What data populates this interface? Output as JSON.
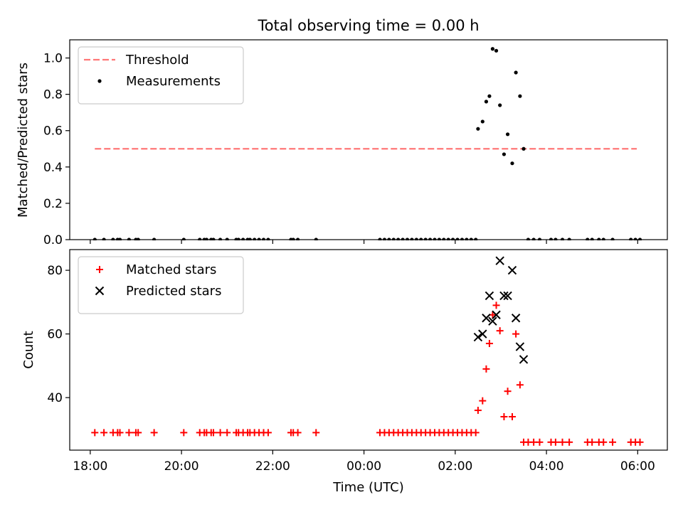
{
  "chart_data": [
    {
      "type": "scatter",
      "title": "Total observing time = 0.00 h",
      "xlabel": "",
      "ylabel": "Matched/Predicted stars",
      "x_unit": "hours since 18:00 UTC",
      "xlim": [
        -0.45,
        12.65
      ],
      "ylim": [
        0,
        1.1
      ],
      "yticks": [
        0.0,
        0.2,
        0.4,
        0.6,
        0.8,
        1.0
      ],
      "ytick_labels": [
        "0.0",
        "0.2",
        "0.4",
        "0.6",
        "0.8",
        "1.0"
      ],
      "grid": false,
      "legend": "upper-left",
      "threshold": {
        "name": "Threshold",
        "value": 0.5,
        "x": [
          0.1,
          11.98
        ],
        "color": "#ff7777",
        "style": "dashed"
      },
      "series": [
        {
          "name": "Measurements",
          "color": "#000000",
          "marker": "dot",
          "points": [
            [
              0.1,
              0
            ],
            [
              0.3,
              0
            ],
            [
              0.5,
              0
            ],
            [
              0.6,
              0
            ],
            [
              0.65,
              0
            ],
            [
              0.85,
              0
            ],
            [
              1.0,
              0
            ],
            [
              1.05,
              0
            ],
            [
              1.4,
              0
            ],
            [
              2.05,
              0
            ],
            [
              2.4,
              0
            ],
            [
              2.5,
              0
            ],
            [
              2.55,
              0
            ],
            [
              2.65,
              0
            ],
            [
              2.7,
              0
            ],
            [
              2.85,
              0
            ],
            [
              3.0,
              0
            ],
            [
              3.2,
              0
            ],
            [
              3.25,
              0
            ],
            [
              3.35,
              0
            ],
            [
              3.45,
              0
            ],
            [
              3.5,
              0
            ],
            [
              3.6,
              0
            ],
            [
              3.7,
              0
            ],
            [
              3.8,
              0
            ],
            [
              3.9,
              0
            ],
            [
              4.4,
              0
            ],
            [
              4.45,
              0
            ],
            [
              4.55,
              0
            ],
            [
              4.95,
              0
            ],
            [
              6.35,
              0
            ],
            [
              6.45,
              0
            ],
            [
              6.55,
              0
            ],
            [
              6.65,
              0
            ],
            [
              6.75,
              0
            ],
            [
              6.85,
              0
            ],
            [
              6.95,
              0
            ],
            [
              7.05,
              0
            ],
            [
              7.15,
              0
            ],
            [
              7.25,
              0
            ],
            [
              7.35,
              0
            ],
            [
              7.45,
              0
            ],
            [
              7.55,
              0
            ],
            [
              7.65,
              0
            ],
            [
              7.75,
              0
            ],
            [
              7.85,
              0
            ],
            [
              7.95,
              0
            ],
            [
              8.05,
              0
            ],
            [
              8.15,
              0
            ],
            [
              8.25,
              0
            ],
            [
              8.35,
              0
            ],
            [
              8.45,
              0
            ],
            [
              8.5,
              0.61
            ],
            [
              8.6,
              0.65
            ],
            [
              8.68,
              0.76
            ],
            [
              8.75,
              0.79
            ],
            [
              8.82,
              1.05
            ],
            [
              8.9,
              1.04
            ],
            [
              8.98,
              0.74
            ],
            [
              9.07,
              0.47
            ],
            [
              9.15,
              0.58
            ],
            [
              9.25,
              0.42
            ],
            [
              9.33,
              0.92
            ],
            [
              9.42,
              0.79
            ],
            [
              9.5,
              0.5
            ],
            [
              9.6,
              0
            ],
            [
              9.72,
              0
            ],
            [
              9.85,
              0
            ],
            [
              10.1,
              0
            ],
            [
              10.2,
              0
            ],
            [
              10.35,
              0
            ],
            [
              10.5,
              0
            ],
            [
              10.9,
              0
            ],
            [
              11.0,
              0
            ],
            [
              11.15,
              0
            ],
            [
              11.25,
              0
            ],
            [
              11.45,
              0
            ],
            [
              11.85,
              0
            ],
            [
              11.95,
              0
            ],
            [
              12.05,
              0
            ]
          ]
        }
      ]
    },
    {
      "type": "scatter",
      "title": "",
      "xlabel": "Time (UTC)",
      "ylabel": "Count",
      "x_unit": "hours since 18:00 UTC",
      "xlim": [
        -0.45,
        12.65
      ],
      "ylim": [
        23.5,
        86.5
      ],
      "xticks": [
        0,
        2,
        4,
        6,
        8,
        10,
        12
      ],
      "xtick_labels": [
        "18:00",
        "20:00",
        "22:00",
        "00:00",
        "02:00",
        "04:00",
        "06:00"
      ],
      "yticks": [
        40,
        60,
        80
      ],
      "ytick_labels": [
        "40",
        "60",
        "80"
      ],
      "grid": false,
      "legend": "upper-left",
      "series": [
        {
          "name": "Matched stars",
          "color": "#ff0000",
          "marker": "plus",
          "points": [
            [
              0.1,
              29
            ],
            [
              0.3,
              29
            ],
            [
              0.5,
              29
            ],
            [
              0.6,
              29
            ],
            [
              0.65,
              29
            ],
            [
              0.85,
              29
            ],
            [
              1.0,
              29
            ],
            [
              1.05,
              29
            ],
            [
              1.4,
              29
            ],
            [
              2.05,
              29
            ],
            [
              2.4,
              29
            ],
            [
              2.5,
              29
            ],
            [
              2.55,
              29
            ],
            [
              2.65,
              29
            ],
            [
              2.7,
              29
            ],
            [
              2.85,
              29
            ],
            [
              3.0,
              29
            ],
            [
              3.2,
              29
            ],
            [
              3.25,
              29
            ],
            [
              3.35,
              29
            ],
            [
              3.45,
              29
            ],
            [
              3.5,
              29
            ],
            [
              3.6,
              29
            ],
            [
              3.7,
              29
            ],
            [
              3.8,
              29
            ],
            [
              3.9,
              29
            ],
            [
              4.4,
              29
            ],
            [
              4.45,
              29
            ],
            [
              4.55,
              29
            ],
            [
              4.95,
              29
            ],
            [
              6.35,
              29
            ],
            [
              6.45,
              29
            ],
            [
              6.55,
              29
            ],
            [
              6.65,
              29
            ],
            [
              6.75,
              29
            ],
            [
              6.85,
              29
            ],
            [
              6.95,
              29
            ],
            [
              7.05,
              29
            ],
            [
              7.15,
              29
            ],
            [
              7.25,
              29
            ],
            [
              7.35,
              29
            ],
            [
              7.45,
              29
            ],
            [
              7.55,
              29
            ],
            [
              7.65,
              29
            ],
            [
              7.75,
              29
            ],
            [
              7.85,
              29
            ],
            [
              7.95,
              29
            ],
            [
              8.05,
              29
            ],
            [
              8.15,
              29
            ],
            [
              8.25,
              29
            ],
            [
              8.35,
              29
            ],
            [
              8.45,
              29
            ],
            [
              8.5,
              36
            ],
            [
              8.6,
              39
            ],
            [
              8.68,
              49
            ],
            [
              8.75,
              57
            ],
            [
              8.82,
              66
            ],
            [
              8.9,
              69
            ],
            [
              8.98,
              61
            ],
            [
              9.07,
              34
            ],
            [
              9.15,
              42
            ],
            [
              9.25,
              34
            ],
            [
              9.33,
              60
            ],
            [
              9.42,
              44
            ],
            [
              9.5,
              26
            ],
            [
              9.6,
              26
            ],
            [
              9.72,
              26
            ],
            [
              9.85,
              26
            ],
            [
              10.1,
              26
            ],
            [
              10.2,
              26
            ],
            [
              10.35,
              26
            ],
            [
              10.5,
              26
            ],
            [
              10.9,
              26
            ],
            [
              11.0,
              26
            ],
            [
              11.15,
              26
            ],
            [
              11.25,
              26
            ],
            [
              11.45,
              26
            ],
            [
              11.85,
              26
            ],
            [
              11.95,
              26
            ],
            [
              12.05,
              26
            ]
          ]
        },
        {
          "name": "Predicted stars",
          "color": "#000000",
          "marker": "x",
          "points": [
            [
              8.5,
              59
            ],
            [
              8.6,
              60
            ],
            [
              8.68,
              65
            ],
            [
              8.75,
              72
            ],
            [
              8.82,
              64
            ],
            [
              8.9,
              66
            ],
            [
              8.98,
              83
            ],
            [
              9.07,
              72
            ],
            [
              9.15,
              72
            ],
            [
              9.25,
              80
            ],
            [
              9.33,
              65
            ],
            [
              9.42,
              56
            ],
            [
              9.5,
              52
            ]
          ]
        }
      ]
    }
  ]
}
